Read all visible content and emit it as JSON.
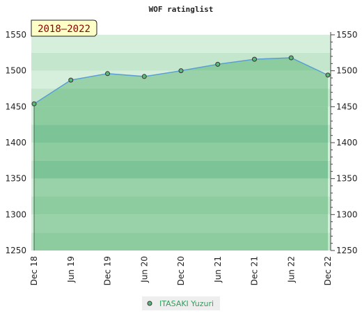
{
  "title": "WOF ratinglist",
  "period": "2018–2022",
  "chart_data": {
    "type": "area",
    "title": "WOF ratinglist",
    "xlabel": "",
    "ylabel": "",
    "categories": [
      "Dec 18",
      "Jun 19",
      "Dec 19",
      "Jun 20",
      "Dec 20",
      "Jun 21",
      "Dec 21",
      "Jun 22",
      "Dec 22"
    ],
    "ylim": [
      1250,
      1550
    ],
    "yticks": [
      1250,
      1300,
      1350,
      1400,
      1450,
      1500,
      1550
    ],
    "series": [
      {
        "name": "ITASAKI Yuzuri",
        "values": [
          1454,
          1487,
          1496,
          1492,
          1500,
          1509,
          1516,
          1518,
          1494
        ]
      }
    ],
    "grid": false,
    "legend": "bottom-center",
    "colors": {
      "line": "#5a9fd4",
      "fill": "#8ccc9e",
      "marker": "#5cb87a"
    }
  }
}
